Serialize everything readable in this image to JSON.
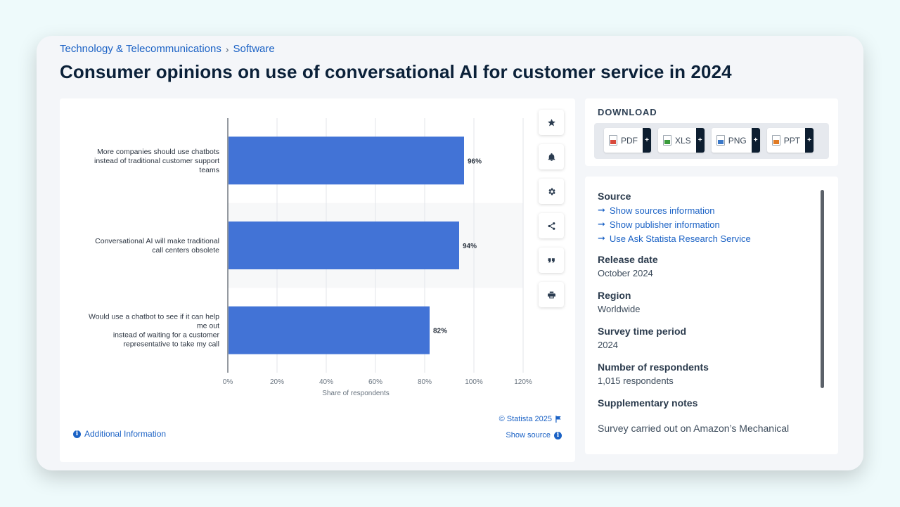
{
  "breadcrumb": {
    "category": "Technology & Telecommunications",
    "separator": "›",
    "subcategory": "Software"
  },
  "page_title": "Consumer opinions on use of conversational AI for customer service in 2024",
  "chart_data": {
    "type": "bar",
    "orientation": "horizontal",
    "categories": [
      [
        "More companies should use chatbots",
        "instead of traditional customer support",
        "teams"
      ],
      [
        "Conversational AI will make traditional",
        "call centers obsolete"
      ],
      [
        "Would use a chatbot to see if it can help",
        "me out",
        "instead of waiting for a customer",
        "representative to take my call"
      ]
    ],
    "values": [
      96,
      94,
      82
    ],
    "value_labels": [
      "96%",
      "94%",
      "82%"
    ],
    "xlabel": "Share of respondents",
    "xlim": [
      0,
      120
    ],
    "ticks": [
      "0%",
      "20%",
      "40%",
      "60%",
      "80%",
      "100%",
      "120%"
    ],
    "bar_color": "#4273d6",
    "grid": true
  },
  "chart_footer": {
    "additional_info": "Additional Information",
    "copyright": "© Statista 2025",
    "show_source": "Show source"
  },
  "tools": [
    "star-icon",
    "bell-icon",
    "gear-icon",
    "share-icon",
    "quote-icon",
    "print-icon"
  ],
  "download": {
    "heading": "DOWNLOAD",
    "formats": [
      "PDF",
      "XLS",
      "PNG",
      "PPT"
    ],
    "plus": "+"
  },
  "info": {
    "source_title": "Source",
    "source_links": [
      "Show sources information",
      "Show publisher information",
      "Use Ask Statista Research Service"
    ],
    "release_title": "Release date",
    "release_value": "October 2024",
    "region_title": "Region",
    "region_value": "Worldwide",
    "period_title": "Survey time period",
    "period_value": "2024",
    "respondents_title": "Number of respondents",
    "respondents_value": "1,015 respondents",
    "notes_title": "Supplementary notes",
    "notes_value": "Survey carried out on Amazon’s Mechanical"
  },
  "colors": {
    "accent": "#1b62c5",
    "bar": "#4273d6",
    "title": "#0b2139"
  }
}
